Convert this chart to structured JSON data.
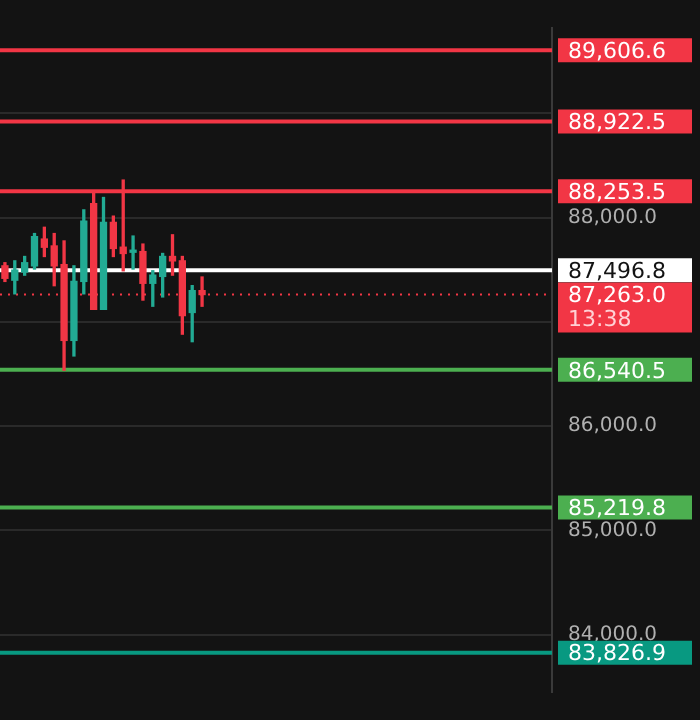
{
  "chart_data": {
    "type": "candlestick",
    "categories": [
      null,
      null,
      null,
      null,
      null,
      null,
      null,
      null,
      null,
      null,
      null,
      null,
      null,
      null,
      null,
      null,
      null,
      null,
      null,
      null,
      null,
      null,
      null,
      null,
      null,
      null,
      null,
      null,
      null,
      null,
      null,
      null,
      null,
      null,
      null,
      null,
      null,
      null,
      null,
      null,
      null,
      null,
      null,
      null,
      null,
      null,
      null,
      null,
      null,
      null,
      null,
      null,
      null,
      null,
      null,
      null
    ],
    "ohlc": [
      [
        87538,
        87568,
        87389,
        87419
      ],
      [
        87401,
        87586,
        87270,
        87497
      ],
      [
        87479,
        87628,
        87449,
        87568
      ],
      [
        87538,
        87848,
        87508,
        87818
      ],
      [
        87795,
        87908,
        87628,
        87717
      ],
      [
        87729,
        87848,
        87348,
        87538
      ],
      [
        87550,
        87777,
        86537,
        86823
      ],
      [
        86823,
        87538,
        86674,
        87389
      ],
      [
        87389,
        88075,
        87270,
        87967
      ],
      [
        88134,
        88242,
        87121,
        87121
      ],
      [
        87121,
        88194,
        87121,
        87955
      ],
      [
        87955,
        88015,
        87628,
        87705
      ],
      [
        87717,
        88361,
        87491,
        87657
      ],
      [
        87669,
        87824,
        87508,
        87687
      ],
      [
        87675,
        87747,
        87210,
        87371
      ],
      [
        87371,
        87491,
        87151,
        87449
      ],
      [
        87437,
        87657,
        87240,
        87628
      ],
      [
        87628,
        87836,
        87449,
        87586
      ],
      [
        87586,
        87628,
        86883,
        87061
      ],
      [
        87091,
        87348,
        86811,
        87300
      ],
      [
        87300,
        87431,
        87151,
        87263
      ],
      null,
      null,
      null,
      null,
      null,
      null,
      null,
      null,
      null,
      null,
      null,
      null,
      null,
      null,
      null,
      null,
      null,
      null,
      null,
      null,
      null,
      null,
      null,
      null,
      null,
      null,
      null,
      null,
      null,
      null,
      null,
      null,
      null,
      null,
      null
    ],
    "ylim": [
      83450,
      89820
    ],
    "yticks": [
      {
        "value": 84000,
        "label": "84,000.0"
      },
      {
        "value": 85000,
        "label": "85,000.0"
      },
      {
        "value": 86000,
        "label": "86,000.0"
      },
      {
        "value": 87000,
        "label": null
      },
      {
        "value": 88000,
        "label": "88,000.0"
      },
      {
        "value": 89000,
        "label": null
      }
    ],
    "grid": "y",
    "ref_lines": [
      {
        "axis": "y",
        "value": 89606.6,
        "label": "89,606.6",
        "color": "#f23645"
      },
      {
        "axis": "y",
        "value": 88922.5,
        "label": "88,922.5",
        "color": "#f23645"
      },
      {
        "axis": "y",
        "value": 88253.5,
        "label": "88,253.5",
        "color": "#f23645"
      },
      {
        "axis": "y",
        "value": 87496.8,
        "label": "87,496.8",
        "color": "#ffffff"
      },
      {
        "axis": "y",
        "value": 87263.0,
        "label": "87,263.0",
        "color": "#f23645",
        "line_style": "dotted"
      },
      {
        "axis": "y",
        "value": 86540.5,
        "label": "86,540.5",
        "color": "#4caf50"
      },
      {
        "axis": "y",
        "value": 85219.8,
        "label": "85,219.8",
        "color": "#4caf50"
      },
      {
        "axis": "y",
        "value": 83826.9,
        "label": "83,826.9",
        "color": "#089981"
      }
    ],
    "annotations": [
      "13:38"
    ]
  }
}
